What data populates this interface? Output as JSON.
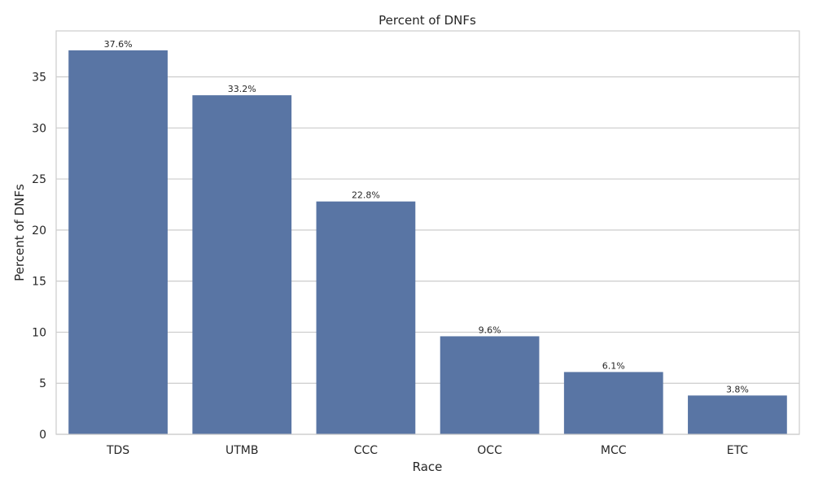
{
  "chart_data": {
    "type": "bar",
    "title": "Percent of DNFs",
    "xlabel": "Race",
    "ylabel": "Percent of DNFs",
    "categories": [
      "TDS",
      "UTMB",
      "CCC",
      "OCC",
      "MCC",
      "ETC"
    ],
    "values": [
      37.6,
      33.2,
      22.8,
      9.6,
      6.1,
      3.8
    ],
    "data_labels": [
      "37.6%",
      "33.2%",
      "22.8%",
      "9.6%",
      "6.1%",
      "3.8%"
    ],
    "ylim": [
      0,
      39.5
    ],
    "yticks": [
      0,
      5,
      10,
      15,
      20,
      25,
      30,
      35
    ],
    "grid": "horizontal",
    "colors": {
      "bar": "#5975a4",
      "grid": "#cccccc",
      "frame": "#cccccc",
      "text": "#262626"
    }
  }
}
